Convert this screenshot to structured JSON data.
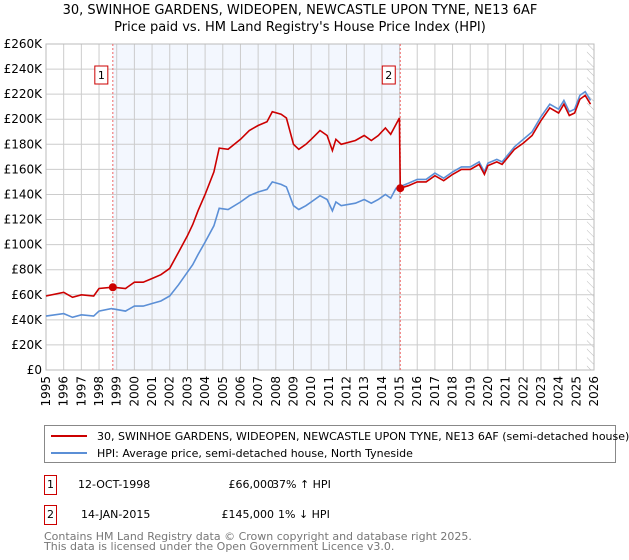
{
  "chart_data": {
    "type": "line",
    "title": "30, SWINHOE GARDENS, WIDEOPEN, NEWCASTLE UPON TYNE, NE13 6AF",
    "subtitle": "Price paid vs. HM Land Registry's House Price Index (HPI)",
    "xlim": [
      1995,
      2026
    ],
    "ylim": [
      0,
      260000
    ],
    "y_ticks": [
      0,
      20000,
      40000,
      60000,
      80000,
      100000,
      120000,
      140000,
      160000,
      180000,
      200000,
      220000,
      240000,
      260000
    ],
    "y_tick_labels": [
      "£0",
      "£20K",
      "£40K",
      "£60K",
      "£80K",
      "£100K",
      "£120K",
      "£140K",
      "£160K",
      "£180K",
      "£200K",
      "£220K",
      "£240K",
      "£260K"
    ],
    "x_ticks": [
      1995,
      1996,
      1997,
      1998,
      1999,
      2000,
      2001,
      2002,
      2003,
      2004,
      2005,
      2006,
      2007,
      2008,
      2009,
      2010,
      2011,
      2012,
      2013,
      2014,
      2015,
      2016,
      2017,
      2018,
      2019,
      2020,
      2021,
      2022,
      2023,
      2024,
      2025,
      2026
    ],
    "grid": true,
    "shaded_range": [
      1998.78,
      2015.04
    ],
    "future_hatch_from": 2025.6,
    "hpi_x": [
      1995,
      1996,
      1996.5,
      1997,
      1997.7,
      1998,
      1998.7,
      1999.5,
      2000,
      2000.5,
      2001,
      2001.5,
      2002,
      2002.5,
      2003,
      2003.3,
      2003.6,
      2004,
      2004.5,
      2004.8,
      2005.3,
      2006,
      2006.5,
      2007,
      2007.5,
      2007.8,
      2008.3,
      2008.6,
      2009,
      2009.3,
      2009.7,
      2010,
      2010.5,
      2010.9,
      2011.2,
      2011.4,
      2011.7,
      2012.5,
      2013,
      2013.4,
      2013.8,
      2014.2,
      2014.5,
      2014.8,
      2015.5,
      2016,
      2016.5,
      2017,
      2017.5,
      2018,
      2018.5,
      2019,
      2019.5,
      2019.8,
      2020,
      2020.5,
      2020.8,
      2021.5,
      2022,
      2022.5,
      2023,
      2023.5,
      2024,
      2024.3,
      2024.6,
      2024.9,
      2025.2,
      2025.5,
      2025.8
    ],
    "hpi_y": [
      43000,
      45000,
      42000,
      44000,
      43000,
      47000,
      49000,
      47000,
      51000,
      51000,
      53000,
      55000,
      59000,
      68000,
      78000,
      84000,
      92000,
      102000,
      115000,
      129000,
      128000,
      134000,
      139000,
      142000,
      144000,
      150000,
      148000,
      146000,
      131000,
      128000,
      131000,
      134000,
      139000,
      136000,
      127000,
      134000,
      131000,
      133000,
      136000,
      133000,
      136000,
      140000,
      137000,
      145000,
      149000,
      152000,
      152000,
      157000,
      153000,
      158000,
      162000,
      162000,
      166000,
      158000,
      165000,
      168000,
      166000,
      178000,
      184000,
      190000,
      202000,
      212000,
      208000,
      215000,
      206000,
      208000,
      219000,
      222000,
      215000
    ],
    "property_x": [
      1995,
      1996,
      1996.5,
      1997,
      1997.7,
      1998,
      1998.78,
      1999.5,
      2000,
      2000.5,
      2001,
      2001.5,
      2002,
      2002.5,
      2003,
      2003.3,
      2003.6,
      2004,
      2004.5,
      2004.8,
      2005.3,
      2006,
      2006.5,
      2007,
      2007.5,
      2007.8,
      2008.3,
      2008.6,
      2009,
      2009.3,
      2009.7,
      2010,
      2010.5,
      2010.9,
      2011.2,
      2011.4,
      2011.7,
      2012.5,
      2013,
      2013.4,
      2013.8,
      2014.2,
      2014.5,
      2014.99,
      2015.04,
      2015.5,
      2016,
      2016.5,
      2017,
      2017.5,
      2018,
      2018.5,
      2019,
      2019.5,
      2019.8,
      2020,
      2020.5,
      2020.8,
      2021.5,
      2022,
      2022.5,
      2023,
      2023.5,
      2024,
      2024.3,
      2024.6,
      2024.9,
      2025.2,
      2025.5,
      2025.8
    ],
    "property_y": [
      59000,
      62000,
      58000,
      60000,
      59000,
      65000,
      66000,
      65000,
      70000,
      70000,
      73000,
      76000,
      81000,
      94000,
      107000,
      116000,
      127000,
      140000,
      158000,
      177000,
      176000,
      184000,
      191000,
      195000,
      198000,
      206000,
      204000,
      201000,
      180000,
      176000,
      180000,
      184000,
      191000,
      187000,
      175000,
      184000,
      180000,
      183000,
      187000,
      183000,
      187000,
      193000,
      188000,
      201000,
      145000,
      147000,
      150000,
      150000,
      155000,
      151000,
      156000,
      160000,
      160000,
      164000,
      156000,
      163000,
      166000,
      164000,
      176000,
      181000,
      187000,
      199000,
      209000,
      205000,
      212000,
      203000,
      205000,
      216000,
      219000,
      212000
    ],
    "sales": [
      {
        "id": "1",
        "x": 1998.78,
        "y": 66000
      },
      {
        "id": "2",
        "x": 2015.04,
        "y": 145000
      }
    ],
    "legend": [
      {
        "label": "30, SWINHOE GARDENS, WIDEOPEN, NEWCASTLE UPON TYNE, NE13 6AF (semi-detached house)",
        "color": "#cc0000"
      },
      {
        "label": "HPI: Average price, semi-detached house, North Tyneside",
        "color": "#5b8fd6"
      }
    ]
  },
  "transactions": [
    {
      "id": "1",
      "date": "12-OCT-1998",
      "price": "£66,000",
      "hpi": "37% ↑ HPI"
    },
    {
      "id": "2",
      "date": "14-JAN-2015",
      "price": "£145,000",
      "hpi": "1% ↓ HPI"
    }
  ],
  "footer": [
    "Contains HM Land Registry data © Crown copyright and database right 2025.",
    "This data is licensed under the Open Government Licence v3.0."
  ]
}
